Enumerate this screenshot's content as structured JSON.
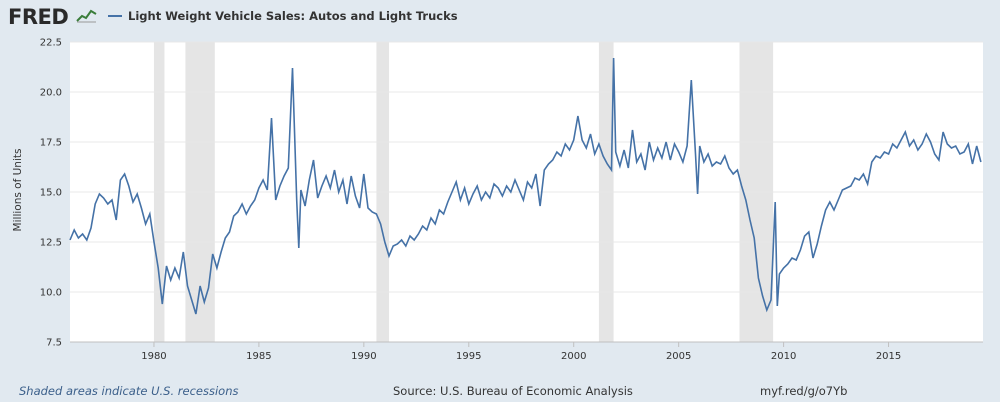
{
  "header": {
    "logo_text": "FRED",
    "logo_icon": "chart-line-icon",
    "series_label": "Light Weight Vehicle Sales: Autos and Light Trucks",
    "series_color": "#4572a7"
  },
  "footer": {
    "recession_note": "Shaded areas indicate U.S. recessions",
    "source": "Source: U.S. Bureau of Economic Analysis",
    "short_url": "myf.red/g/o7Yb"
  },
  "chart_data": {
    "type": "line",
    "ylabel": "Millions of Units",
    "xlim": [
      1976.0,
      2019.5
    ],
    "ylim": [
      7.5,
      22.5
    ],
    "yticks": [
      7.5,
      10.0,
      12.5,
      15.0,
      17.5,
      20.0,
      22.5
    ],
    "ytick_labels": [
      "7.5",
      "10.0",
      "12.5",
      "15.0",
      "17.5",
      "20.0",
      "22.5"
    ],
    "xticks": [
      1980,
      1985,
      1990,
      1995,
      2000,
      2005,
      2010,
      2015
    ],
    "xtick_labels": [
      "1980",
      "1985",
      "1990",
      "1995",
      "2000",
      "2005",
      "2010",
      "2015"
    ],
    "grid": true,
    "recessions": [
      [
        1980.0,
        1980.5
      ],
      [
        1981.5,
        1982.9
      ],
      [
        1990.6,
        1991.2
      ],
      [
        2001.2,
        2001.9
      ],
      [
        2007.9,
        2009.5
      ]
    ],
    "series": [
      {
        "name": "Light Weight Vehicle Sales: Autos and Light Trucks",
        "points": [
          [
            1976.0,
            12.6
          ],
          [
            1976.2,
            13.1
          ],
          [
            1976.4,
            12.7
          ],
          [
            1976.6,
            12.9
          ],
          [
            1976.8,
            12.6
          ],
          [
            1977.0,
            13.2
          ],
          [
            1977.2,
            14.4
          ],
          [
            1977.4,
            14.9
          ],
          [
            1977.6,
            14.7
          ],
          [
            1977.8,
            14.4
          ],
          [
            1978.0,
            14.6
          ],
          [
            1978.2,
            13.6
          ],
          [
            1978.4,
            15.6
          ],
          [
            1978.6,
            15.9
          ],
          [
            1978.8,
            15.3
          ],
          [
            1979.0,
            14.5
          ],
          [
            1979.2,
            14.9
          ],
          [
            1979.4,
            14.2
          ],
          [
            1979.6,
            13.4
          ],
          [
            1979.8,
            13.9
          ],
          [
            1980.0,
            12.5
          ],
          [
            1980.2,
            11.2
          ],
          [
            1980.4,
            9.4
          ],
          [
            1980.6,
            11.3
          ],
          [
            1980.8,
            10.6
          ],
          [
            1981.0,
            11.2
          ],
          [
            1981.2,
            10.7
          ],
          [
            1981.4,
            12.0
          ],
          [
            1981.6,
            10.3
          ],
          [
            1981.8,
            9.6
          ],
          [
            1982.0,
            8.9
          ],
          [
            1982.2,
            10.3
          ],
          [
            1982.4,
            9.5
          ],
          [
            1982.6,
            10.2
          ],
          [
            1982.8,
            11.9
          ],
          [
            1983.0,
            11.2
          ],
          [
            1983.2,
            12.0
          ],
          [
            1983.4,
            12.7
          ],
          [
            1983.6,
            13.0
          ],
          [
            1983.8,
            13.8
          ],
          [
            1984.0,
            14.0
          ],
          [
            1984.2,
            14.4
          ],
          [
            1984.4,
            13.9
          ],
          [
            1984.6,
            14.3
          ],
          [
            1984.8,
            14.6
          ],
          [
            1985.0,
            15.2
          ],
          [
            1985.2,
            15.6
          ],
          [
            1985.4,
            15.1
          ],
          [
            1985.6,
            18.7
          ],
          [
            1985.8,
            14.6
          ],
          [
            1986.0,
            15.3
          ],
          [
            1986.2,
            15.8
          ],
          [
            1986.4,
            16.2
          ],
          [
            1986.6,
            21.2
          ],
          [
            1986.8,
            14.6
          ],
          [
            1986.9,
            12.2
          ],
          [
            1987.0,
            15.1
          ],
          [
            1987.2,
            14.3
          ],
          [
            1987.4,
            15.6
          ],
          [
            1987.6,
            16.6
          ],
          [
            1987.8,
            14.7
          ],
          [
            1988.0,
            15.3
          ],
          [
            1988.2,
            15.8
          ],
          [
            1988.4,
            15.2
          ],
          [
            1988.6,
            16.1
          ],
          [
            1988.8,
            15.0
          ],
          [
            1989.0,
            15.6
          ],
          [
            1989.2,
            14.4
          ],
          [
            1989.4,
            15.8
          ],
          [
            1989.6,
            14.8
          ],
          [
            1989.8,
            14.2
          ],
          [
            1990.0,
            15.9
          ],
          [
            1990.2,
            14.2
          ],
          [
            1990.4,
            14.0
          ],
          [
            1990.6,
            13.9
          ],
          [
            1990.8,
            13.4
          ],
          [
            1991.0,
            12.5
          ],
          [
            1991.2,
            11.8
          ],
          [
            1991.4,
            12.3
          ],
          [
            1991.6,
            12.4
          ],
          [
            1991.8,
            12.6
          ],
          [
            1992.0,
            12.3
          ],
          [
            1992.2,
            12.8
          ],
          [
            1992.4,
            12.6
          ],
          [
            1992.6,
            12.9
          ],
          [
            1992.8,
            13.3
          ],
          [
            1993.0,
            13.1
          ],
          [
            1993.2,
            13.7
          ],
          [
            1993.4,
            13.4
          ],
          [
            1993.6,
            14.1
          ],
          [
            1993.8,
            13.9
          ],
          [
            1994.0,
            14.5
          ],
          [
            1994.2,
            15.0
          ],
          [
            1994.4,
            15.5
          ],
          [
            1994.6,
            14.6
          ],
          [
            1994.8,
            15.2
          ],
          [
            1995.0,
            14.4
          ],
          [
            1995.2,
            14.9
          ],
          [
            1995.4,
            15.3
          ],
          [
            1995.6,
            14.6
          ],
          [
            1995.8,
            15.0
          ],
          [
            1996.0,
            14.7
          ],
          [
            1996.2,
            15.4
          ],
          [
            1996.4,
            15.2
          ],
          [
            1996.6,
            14.8
          ],
          [
            1996.8,
            15.3
          ],
          [
            1997.0,
            15.0
          ],
          [
            1997.2,
            15.6
          ],
          [
            1997.4,
            15.1
          ],
          [
            1997.6,
            14.6
          ],
          [
            1997.8,
            15.5
          ],
          [
            1998.0,
            15.2
          ],
          [
            1998.2,
            15.9
          ],
          [
            1998.4,
            14.3
          ],
          [
            1998.6,
            16.1
          ],
          [
            1998.8,
            16.4
          ],
          [
            1999.0,
            16.6
          ],
          [
            1999.2,
            17.0
          ],
          [
            1999.4,
            16.8
          ],
          [
            1999.6,
            17.4
          ],
          [
            1999.8,
            17.1
          ],
          [
            2000.0,
            17.6
          ],
          [
            2000.2,
            18.8
          ],
          [
            2000.4,
            17.6
          ],
          [
            2000.6,
            17.2
          ],
          [
            2000.8,
            17.9
          ],
          [
            2001.0,
            16.9
          ],
          [
            2001.2,
            17.4
          ],
          [
            2001.4,
            16.8
          ],
          [
            2001.6,
            16.4
          ],
          [
            2001.8,
            16.1
          ],
          [
            2001.9,
            21.7
          ],
          [
            2002.0,
            17.0
          ],
          [
            2002.2,
            16.3
          ],
          [
            2002.4,
            17.1
          ],
          [
            2002.6,
            16.2
          ],
          [
            2002.8,
            18.1
          ],
          [
            2003.0,
            16.5
          ],
          [
            2003.2,
            16.9
          ],
          [
            2003.4,
            16.1
          ],
          [
            2003.6,
            17.5
          ],
          [
            2003.8,
            16.6
          ],
          [
            2004.0,
            17.2
          ],
          [
            2004.2,
            16.7
          ],
          [
            2004.4,
            17.5
          ],
          [
            2004.6,
            16.6
          ],
          [
            2004.8,
            17.4
          ],
          [
            2005.0,
            17.0
          ],
          [
            2005.2,
            16.5
          ],
          [
            2005.4,
            17.3
          ],
          [
            2005.6,
            20.6
          ],
          [
            2005.8,
            16.9
          ],
          [
            2005.9,
            14.9
          ],
          [
            2006.0,
            17.3
          ],
          [
            2006.2,
            16.5
          ],
          [
            2006.4,
            16.9
          ],
          [
            2006.6,
            16.3
          ],
          [
            2006.8,
            16.5
          ],
          [
            2007.0,
            16.4
          ],
          [
            2007.2,
            16.8
          ],
          [
            2007.4,
            16.2
          ],
          [
            2007.6,
            15.9
          ],
          [
            2007.8,
            16.1
          ],
          [
            2008.0,
            15.3
          ],
          [
            2008.2,
            14.6
          ],
          [
            2008.4,
            13.6
          ],
          [
            2008.6,
            12.7
          ],
          [
            2008.8,
            10.7
          ],
          [
            2009.0,
            9.8
          ],
          [
            2009.2,
            9.1
          ],
          [
            2009.4,
            9.6
          ],
          [
            2009.6,
            14.5
          ],
          [
            2009.7,
            9.3
          ],
          [
            2009.8,
            10.9
          ],
          [
            2010.0,
            11.2
          ],
          [
            2010.2,
            11.4
          ],
          [
            2010.4,
            11.7
          ],
          [
            2010.6,
            11.6
          ],
          [
            2010.8,
            12.1
          ],
          [
            2011.0,
            12.8
          ],
          [
            2011.2,
            13.0
          ],
          [
            2011.4,
            11.7
          ],
          [
            2011.6,
            12.4
          ],
          [
            2011.8,
            13.3
          ],
          [
            2012.0,
            14.1
          ],
          [
            2012.2,
            14.5
          ],
          [
            2012.4,
            14.1
          ],
          [
            2012.6,
            14.6
          ],
          [
            2012.8,
            15.1
          ],
          [
            2013.0,
            15.2
          ],
          [
            2013.2,
            15.3
          ],
          [
            2013.4,
            15.7
          ],
          [
            2013.6,
            15.6
          ],
          [
            2013.8,
            15.9
          ],
          [
            2014.0,
            15.4
          ],
          [
            2014.2,
            16.5
          ],
          [
            2014.4,
            16.8
          ],
          [
            2014.6,
            16.7
          ],
          [
            2014.8,
            17.0
          ],
          [
            2015.0,
            16.9
          ],
          [
            2015.2,
            17.4
          ],
          [
            2015.4,
            17.2
          ],
          [
            2015.6,
            17.6
          ],
          [
            2015.8,
            18.0
          ],
          [
            2016.0,
            17.3
          ],
          [
            2016.2,
            17.6
          ],
          [
            2016.4,
            17.1
          ],
          [
            2016.6,
            17.4
          ],
          [
            2016.8,
            17.9
          ],
          [
            2017.0,
            17.5
          ],
          [
            2017.2,
            16.9
          ],
          [
            2017.4,
            16.6
          ],
          [
            2017.6,
            18.0
          ],
          [
            2017.8,
            17.4
          ],
          [
            2018.0,
            17.2
          ],
          [
            2018.2,
            17.3
          ],
          [
            2018.4,
            16.9
          ],
          [
            2018.6,
            17.0
          ],
          [
            2018.8,
            17.4
          ],
          [
            2019.0,
            16.4
          ],
          [
            2019.2,
            17.3
          ],
          [
            2019.4,
            16.5
          ]
        ]
      }
    ]
  }
}
